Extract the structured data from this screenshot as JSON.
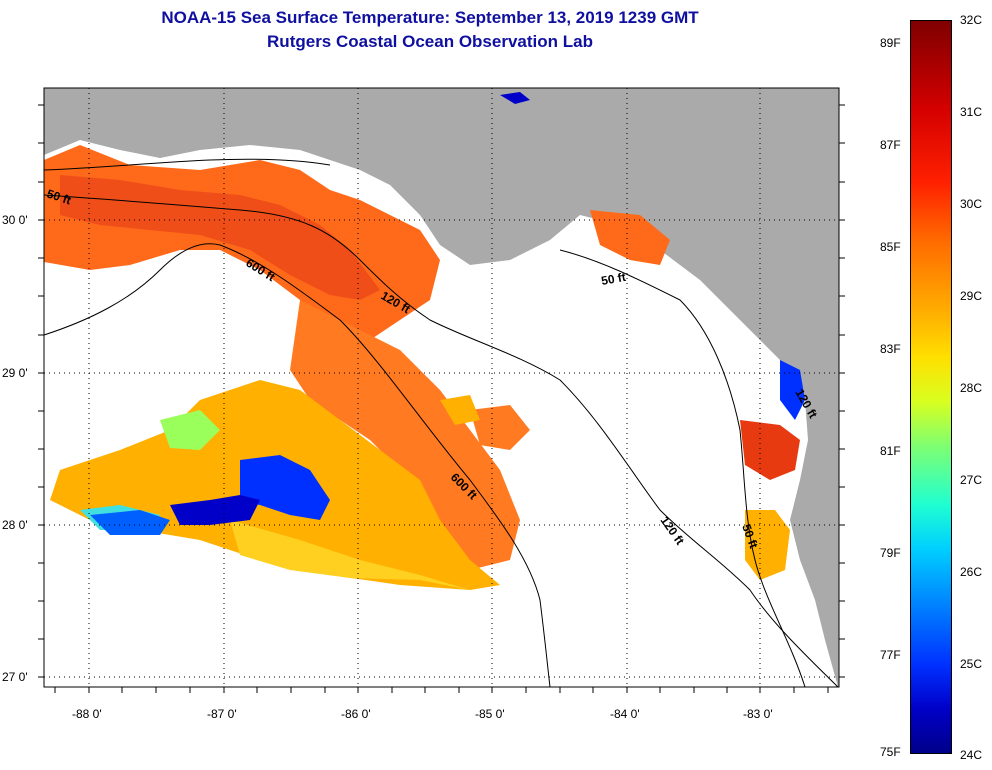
{
  "title_line1": "NOAA-15 Sea Surface Temperature:  September 13, 2019 1239 GMT",
  "title_line2": "Rutgers Coastal Ocean Observation Lab",
  "lon_labels": [
    "-88 0'",
    "-87 0'",
    "-86 0'",
    "-85 0'",
    "-84 0'",
    "-83 0'"
  ],
  "lat_labels": [
    "30 0'",
    "29 0'",
    "28 0'",
    "27 0'"
  ],
  "contour_labels": {
    "west_50": "50 ft",
    "north_600": "600 ft",
    "north_120": "120 ft",
    "east_50": "50 ft",
    "south_600": "600 ft",
    "south_120": "120 ft",
    "se_50": "50 ft",
    "coast_120": "120 ft"
  },
  "colorbar": {
    "fahrenheit": [
      "89F",
      "87F",
      "85F",
      "83F",
      "81F",
      "79F",
      "77F",
      "75F"
    ],
    "celsius": [
      "32C",
      "31C",
      "30C",
      "29C",
      "28C",
      "27C",
      "26C",
      "25C",
      "24C"
    ]
  },
  "colors": {
    "land": "#aaaaaa",
    "title": "#1010a0",
    "warm": "#ff6a1a",
    "hot": "#e83a10",
    "mid": "#ffb000",
    "cool": "#0030ff"
  }
}
